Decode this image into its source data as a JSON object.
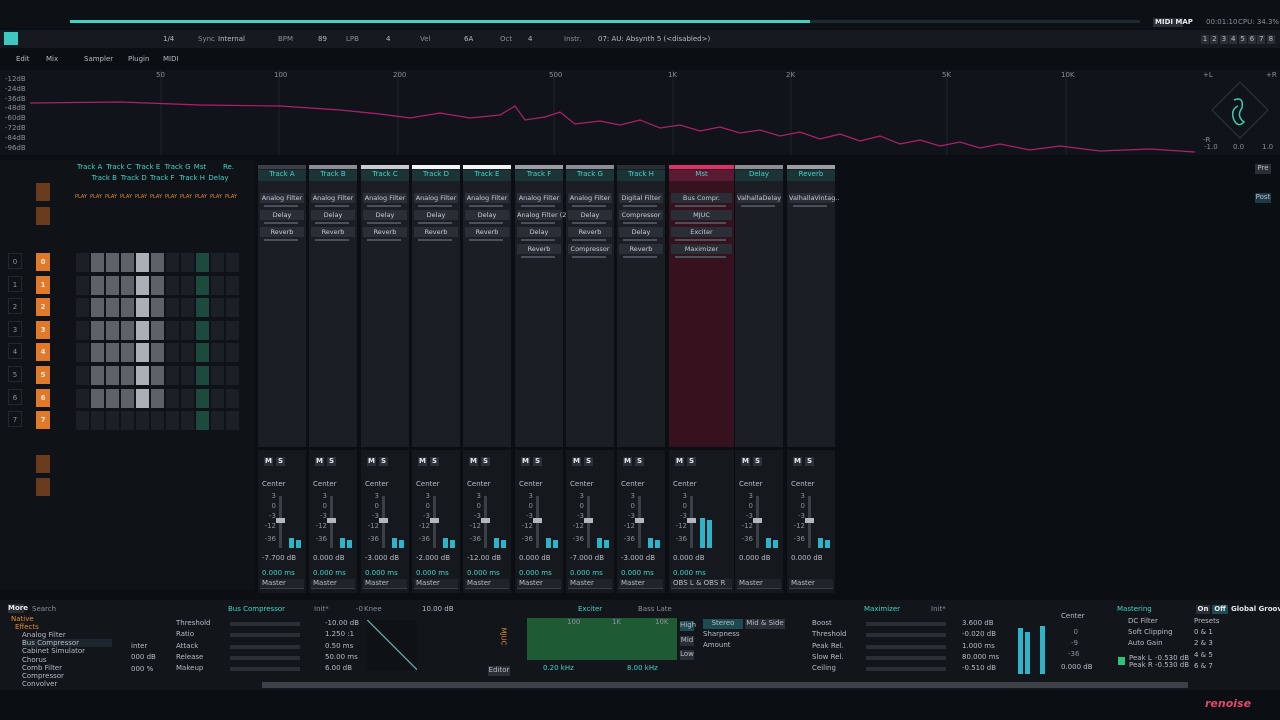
{
  "toolbar": {
    "signature": "1/4",
    "sync_label": "Sync",
    "sync": "Internal",
    "bpm_label": "BPM",
    "bpm": "89",
    "lpb_label": "LPB",
    "lpb": "4",
    "vel_label": "Vel",
    "vel": "6A",
    "oct_label": "Oct",
    "oct": "4",
    "instr_label": "Instr.",
    "instrument": "07: AU: Absynth 5 (<disabled>)",
    "midi_map": "MIDI MAP",
    "time": "00:01:10",
    "cpu": "CPU: 34.3%",
    "octaves": [
      "1",
      "2",
      "3",
      "4",
      "5",
      "6",
      "7",
      "8"
    ]
  },
  "tabs": [
    "Edit",
    "Mix",
    "Sampler",
    "Plugin",
    "MIDI"
  ],
  "spectrum": {
    "freq_labels": [
      "50",
      "100",
      "200",
      "500",
      "1K",
      "2K",
      "5K",
      "10K"
    ],
    "db_labels": [
      "-12dB",
      "-24dB",
      "-36dB",
      "-48dB",
      "-60dB",
      "-72dB",
      "-84dB",
      "-96dB"
    ],
    "scope_labels": [
      "+L",
      "+R",
      "-R",
      "-1.0",
      "0.0",
      "1.0"
    ]
  },
  "matrix": {
    "tracks": [
      "Track A",
      "Track B",
      "Track C",
      "Track D",
      "Track E",
      "Track F",
      "Track G",
      "Track H",
      "Mst",
      "Delay",
      "Re."
    ],
    "play": "PLAY",
    "rows": [
      "0",
      "1",
      "2",
      "3",
      "4",
      "5",
      "6",
      "7"
    ]
  },
  "mixer": {
    "mute": "M",
    "solo": "S",
    "pan": "Center",
    "meter_scale": [
      "3",
      "0",
      "-3",
      "-12",
      "-36"
    ],
    "pre": "Pre",
    "post": "Post",
    "tracks": [
      {
        "name": "Track A",
        "devices": [
          "Analog Filter",
          "Delay",
          "Reverb"
        ],
        "volume": "-7.700 dB",
        "delay": "0.000 ms",
        "output": "Master"
      },
      {
        "name": "Track B",
        "devices": [
          "Analog Filter",
          "Delay",
          "Reverb"
        ],
        "volume": "0.000 dB",
        "delay": "0.000 ms",
        "output": "Master"
      },
      {
        "name": "Track C",
        "devices": [
          "Analog Filter",
          "Delay",
          "Reverb"
        ],
        "volume": "-3.000 dB",
        "delay": "0.000 ms",
        "output": "Master"
      },
      {
        "name": "Track D",
        "devices": [
          "Analog Filter",
          "Delay",
          "Reverb"
        ],
        "volume": "-2.000 dB",
        "delay": "0.000 ms",
        "output": "Master"
      },
      {
        "name": "Track E",
        "devices": [
          "Analog Filter",
          "Delay",
          "Reverb"
        ],
        "volume": "-12.00 dB",
        "delay": "0.000 ms",
        "output": "Master"
      },
      {
        "name": "Track F",
        "devices": [
          "Analog Filter",
          "Analog Filter (2)",
          "Delay",
          "Reverb"
        ],
        "volume": "0.000 dB",
        "delay": "0.000 ms",
        "output": "Master"
      },
      {
        "name": "Track G",
        "devices": [
          "Analog Filter",
          "Delay",
          "Reverb",
          "Compressor"
        ],
        "volume": "-7.000 dB",
        "delay": "0.000 ms",
        "output": "Master"
      },
      {
        "name": "Track H",
        "devices": [
          "Digital Filter",
          "Compressor",
          "Delay",
          "Reverb"
        ],
        "volume": "-3.000 dB",
        "delay": "0.000 ms",
        "output": "Master"
      },
      {
        "name": "Mst",
        "devices": [
          "Bus Compr.",
          "MJUC",
          "Exciter",
          "Maximizer"
        ],
        "volume": "0.000 dB",
        "delay": "0.000 ms",
        "output": "OBS L & OBS R"
      },
      {
        "name": "Delay",
        "devices": [
          "ValhallaDelay"
        ],
        "volume": "0.000 dB",
        "output": "Master"
      },
      {
        "name": "Reverb",
        "devices": [
          "ValhallaVintag.."
        ],
        "volume": "0.000 dB",
        "output": "Master"
      }
    ]
  },
  "browser": {
    "more": "More",
    "search": "Search",
    "native": "Native",
    "effects": "Effects",
    "items": [
      "Analog Filter",
      "Bus Compressor",
      "Cabinet Simulator",
      "Chorus",
      "Comb Filter",
      "Compressor",
      "Convolver"
    ],
    "cut": [
      "inter",
      "000 dB",
      "000 %"
    ]
  },
  "bus_compressor": {
    "title": "Bus Compressor",
    "preset": "Init*",
    "knee_value": "-0",
    "knee": "Knee",
    "knee_db": "10.00 dB",
    "params": [
      [
        "Threshold",
        "-10.00 dB"
      ],
      [
        "Ratio",
        "1.250 :1"
      ],
      [
        "Attack",
        "0.50 ms"
      ],
      [
        "Release",
        "50.00 ms"
      ],
      [
        "Makeup",
        "6.00 dB"
      ]
    ]
  },
  "mjuc": {
    "title": "MJUC",
    "editor": "Editor"
  },
  "exciter": {
    "title": "Exciter",
    "preset": "Bass Late",
    "freqs": [
      "100",
      "1K",
      "10K"
    ],
    "low_freq": "0.20 kHz",
    "high_freq": "8.00 kHz",
    "bands": [
      "High",
      "Mid",
      "Low"
    ],
    "modes": [
      "Stereo",
      "Mid & Side"
    ],
    "params": [
      "Sharpness",
      "Amount"
    ]
  },
  "maximizer": {
    "title": "Maximizer",
    "preset": "Init*",
    "params": [
      [
        "Boost",
        "3.600 dB"
      ],
      [
        "Threshold",
        "-0.020 dB"
      ],
      [
        "Peak Rel.",
        "1.000 ms"
      ],
      [
        "Slow Rel.",
        "80.000 ms"
      ],
      [
        "Ceiling",
        "-0.510 dB"
      ]
    ],
    "pan": "Center",
    "volume": "0.000 dB",
    "scale": [
      "0",
      "-9",
      "-36"
    ]
  },
  "mastering": {
    "title": "Mastering",
    "options": [
      "DC Filter",
      "Soft Clipping",
      "Auto Gain"
    ],
    "peak_l": "Peak L",
    "peak_l_value": "-0.530 dB",
    "peak_r": "Peak R",
    "peak_r_value": "-0.530 dB"
  },
  "groove": {
    "on": "On",
    "off": "Off",
    "title": "Global Groove",
    "presets": "Presets",
    "pairs": [
      "0 & 1",
      "2 & 3",
      "4 & 5",
      "6 & 7"
    ]
  },
  "logo": "renoise"
}
